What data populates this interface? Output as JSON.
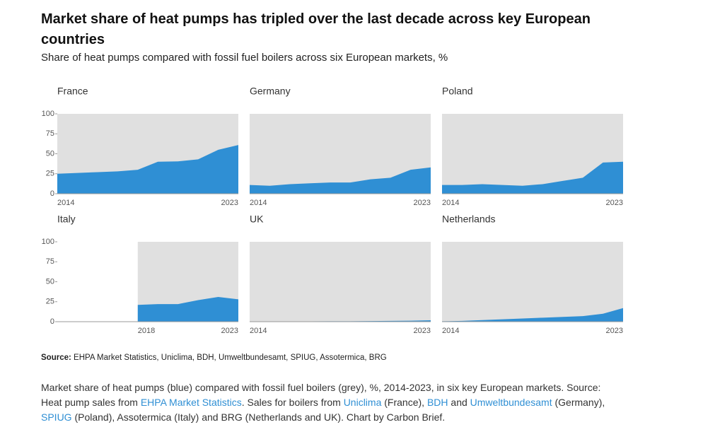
{
  "title": "Market share of heat pumps has tripled over the last decade across key European countries",
  "subtitle": "Share of heat pumps compared with fossil fuel boilers across six European markets, %",
  "chart_data": [
    {
      "type": "area",
      "title": "France",
      "x": [
        2014,
        2015,
        2016,
        2017,
        2018,
        2019,
        2020,
        2021,
        2022,
        2023
      ],
      "values": [
        25,
        26,
        27,
        28,
        30,
        40,
        40.5,
        43,
        55,
        61
      ],
      "color": "#2f8fd4",
      "background": "#e0e0e0",
      "xlim": [
        2014,
        2023
      ],
      "xticks": [
        2014,
        2023
      ],
      "ylim": [
        0,
        100
      ],
      "yticks": [
        0,
        25,
        50,
        75,
        100
      ]
    },
    {
      "type": "area",
      "title": "Germany",
      "x": [
        2014,
        2015,
        2016,
        2017,
        2018,
        2019,
        2020,
        2021,
        2022,
        2023
      ],
      "values": [
        11,
        10,
        12,
        13,
        14,
        14,
        18,
        20,
        30,
        33
      ],
      "color": "#2f8fd4",
      "background": "#e0e0e0",
      "xlim": [
        2014,
        2023
      ],
      "xticks": [
        2014,
        2023
      ],
      "ylim": [
        0,
        100
      ]
    },
    {
      "type": "area",
      "title": "Poland",
      "x": [
        2014,
        2015,
        2016,
        2017,
        2018,
        2019,
        2020,
        2021,
        2022,
        2023
      ],
      "values": [
        11,
        11,
        12,
        11,
        10,
        12,
        16,
        20,
        39,
        40
      ],
      "color": "#2f8fd4",
      "background": "#e0e0e0",
      "xlim": [
        2014,
        2023
      ],
      "xticks": [
        2014,
        2023
      ],
      "ylim": [
        0,
        100
      ]
    },
    {
      "type": "area",
      "title": "Italy",
      "x": [
        2014,
        2015,
        2016,
        2017,
        2018,
        2019,
        2020,
        2021,
        2022,
        2023
      ],
      "values": [
        null,
        null,
        null,
        null,
        21,
        22,
        22,
        27,
        31,
        28
      ],
      "color": "#2f8fd4",
      "background": "#e0e0e0",
      "xlim": [
        2014,
        2023
      ],
      "xticks": [
        2018,
        2023
      ],
      "ylim": [
        0,
        100
      ],
      "yticks": [
        0,
        25,
        50,
        75,
        100
      ]
    },
    {
      "type": "area",
      "title": "UK",
      "x": [
        2014,
        2015,
        2016,
        2017,
        2018,
        2019,
        2020,
        2021,
        2022,
        2023
      ],
      "values": [
        0.3,
        0.3,
        0.3,
        0.4,
        0.5,
        0.6,
        0.8,
        1,
        1.2,
        1.8
      ],
      "color": "#2f8fd4",
      "background": "#e0e0e0",
      "xlim": [
        2014,
        2023
      ],
      "xticks": [
        2014,
        2023
      ],
      "ylim": [
        0,
        100
      ]
    },
    {
      "type": "area",
      "title": "Netherlands",
      "x": [
        2014,
        2015,
        2016,
        2017,
        2018,
        2019,
        2020,
        2021,
        2022,
        2023
      ],
      "values": [
        0.5,
        1,
        2,
        3,
        4,
        5,
        6,
        7,
        10,
        17
      ],
      "color": "#2f8fd4",
      "background": "#e0e0e0",
      "xlim": [
        2014,
        2023
      ],
      "xticks": [
        2014,
        2023
      ],
      "ylim": [
        0,
        100
      ]
    }
  ],
  "source": {
    "label": "Source:",
    "text": "EHPA Market Statistics, Uniclima, BDH, Umweltbundesamt, SPIUG, Assotermica, BRG"
  },
  "caption": [
    {
      "text": "Market share of heat pumps (blue) compared with fossil fuel boilers (grey), %, 2014-2023, in six key European markets. Source: Heat pump sales from ",
      "link": false
    },
    {
      "text": "EHPA Market Statistics",
      "link": true
    },
    {
      "text": ". Sales for boilers from ",
      "link": false
    },
    {
      "text": "Uniclima",
      "link": true
    },
    {
      "text": " (France), ",
      "link": false
    },
    {
      "text": "BDH",
      "link": true
    },
    {
      "text": " and ",
      "link": false
    },
    {
      "text": "Umweltbundesamt",
      "link": true
    },
    {
      "text": " (Germany), ",
      "link": false
    },
    {
      "text": "SPIUG",
      "link": true
    },
    {
      "text": " (Poland), Assotermica (Italy) and BRG (Netherlands and UK). Chart by Carbon Brief.",
      "link": false
    }
  ]
}
